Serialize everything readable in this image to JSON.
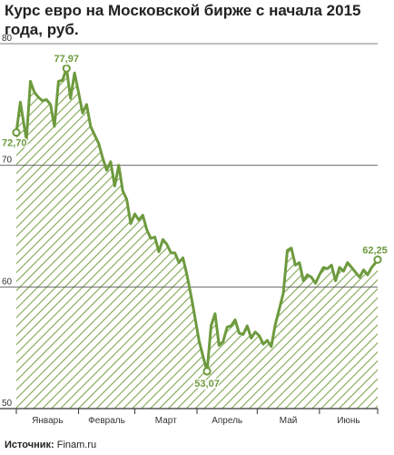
{
  "chart": {
    "title": "Курс евро на Московской бирже с начала 2015 года, руб.",
    "source_label": "Источник:",
    "source_value": "Finam.ru"
  },
  "colors": {
    "line": "#6d9a3e",
    "hatch": "#7fa653",
    "grid": "#555555",
    "axis": "#333333",
    "marker_fill": "#ffffff"
  },
  "chart_data": {
    "type": "area",
    "title": "Курс евро на Московской бирже с начала 2015 года, руб.",
    "xlabel": "",
    "ylabel": "",
    "ylim": [
      50,
      80
    ],
    "yticks": [
      50,
      60,
      70,
      80
    ],
    "xlim": [
      "2015-01-01",
      "2015-06-30"
    ],
    "month_labels": [
      "Январь",
      "Февраль",
      "Март",
      "Апрель",
      "Май",
      "Июнь"
    ],
    "grid": true,
    "series": [
      {
        "x": [
          "2015-01-01",
          "2015-01-03",
          "2015-01-06",
          "2015-01-08",
          "2015-01-10",
          "2015-01-12",
          "2015-01-14",
          "2015-01-16",
          "2015-01-18",
          "2015-01-20",
          "2015-01-22",
          "2015-01-24",
          "2015-01-26",
          "2015-01-28",
          "2015-01-30",
          "2015-02-01",
          "2015-02-03",
          "2015-02-05",
          "2015-02-07",
          "2015-02-09",
          "2015-02-11",
          "2015-02-13",
          "2015-02-15",
          "2015-02-17",
          "2015-02-19",
          "2015-02-21",
          "2015-02-23",
          "2015-02-25",
          "2015-02-27",
          "2015-03-01",
          "2015-03-03",
          "2015-03-05",
          "2015-03-07",
          "2015-03-09",
          "2015-03-11",
          "2015-03-13",
          "2015-03-15",
          "2015-03-17",
          "2015-03-19",
          "2015-03-21",
          "2015-03-23",
          "2015-03-25",
          "2015-03-27",
          "2015-03-29",
          "2015-03-31",
          "2015-04-02",
          "2015-04-04",
          "2015-04-06",
          "2015-04-08",
          "2015-04-10",
          "2015-04-12",
          "2015-04-14",
          "2015-04-16",
          "2015-04-18",
          "2015-04-20",
          "2015-04-22",
          "2015-04-24",
          "2015-04-26",
          "2015-04-28",
          "2015-04-30",
          "2015-05-02",
          "2015-05-04",
          "2015-05-06",
          "2015-05-08",
          "2015-05-10",
          "2015-05-12",
          "2015-05-14",
          "2015-05-16",
          "2015-05-18",
          "2015-05-20",
          "2015-05-22",
          "2015-05-24",
          "2015-05-26",
          "2015-05-28",
          "2015-05-30",
          "2015-06-01",
          "2015-06-03",
          "2015-06-05",
          "2015-06-07",
          "2015-06-09",
          "2015-06-11",
          "2015-06-13",
          "2015-06-15",
          "2015-06-17",
          "2015-06-19",
          "2015-06-21",
          "2015-06-23",
          "2015-06-25",
          "2015-06-27",
          "2015-06-29",
          "2015-06-30"
        ],
        "values": [
          72.7,
          75.2,
          72.1,
          76.9,
          76.0,
          75.6,
          75.3,
          75.4,
          75.0,
          73.2,
          76.9,
          77.0,
          77.97,
          75.5,
          77.6,
          76.0,
          74.3,
          75.0,
          73.2,
          72.5,
          71.8,
          70.6,
          69.6,
          70.3,
          68.3,
          70.0,
          67.9,
          67.2,
          65.2,
          66.0,
          65.5,
          65.9,
          64.7,
          64.0,
          64.1,
          62.9,
          63.9,
          63.5,
          62.8,
          62.8,
          62.0,
          62.4,
          61.0,
          59.3,
          57.5,
          55.6,
          54.3,
          53.07,
          56.8,
          57.8,
          55.2,
          55.5,
          56.7,
          56.8,
          57.3,
          56.2,
          56.1,
          56.8,
          55.8,
          56.3,
          56.0,
          55.3,
          55.6,
          55.1,
          56.9,
          58.2,
          59.5,
          63.0,
          63.2,
          61.8,
          62.0,
          60.5,
          61.0,
          60.8,
          60.3,
          61.0,
          61.6,
          61.5,
          61.8,
          60.5,
          61.6,
          61.3,
          62.0,
          61.6,
          61.2,
          60.8,
          61.4,
          61.0,
          61.6,
          62.0,
          62.25
        ]
      }
    ],
    "annotations": [
      {
        "label": "72,70",
        "x": "2015-01-01",
        "y": 72.7
      },
      {
        "label": "77,97",
        "x": "2015-01-26",
        "y": 77.97
      },
      {
        "label": "53,07",
        "x": "2015-04-06",
        "y": 53.07
      },
      {
        "label": "62,25",
        "x": "2015-06-30",
        "y": 62.25
      }
    ]
  }
}
